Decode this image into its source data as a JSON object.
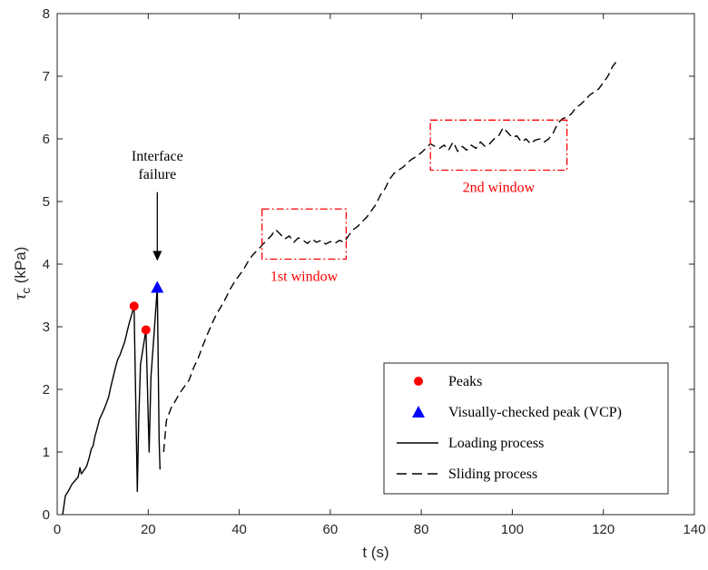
{
  "chart_data": {
    "type": "line",
    "xlabel": "t (s)",
    "ylabel": "τ",
    "ylabel_sub": "c",
    "ylabel_unit": " (kPa)",
    "xlim": [
      0,
      140
    ],
    "ylim": [
      0,
      8
    ],
    "xticks": [
      0,
      20,
      40,
      60,
      80,
      100,
      120,
      140
    ],
    "yticks": [
      0,
      1,
      2,
      3,
      4,
      5,
      6,
      7,
      8
    ],
    "grid": false,
    "legend_position": "bottom-right",
    "legend": [
      {
        "label": "Peaks",
        "marker": "circle",
        "color": "#ff0000"
      },
      {
        "label": "Visually-checked peak (VCP)",
        "marker": "triangle",
        "color": "#0000ff"
      },
      {
        "label": "Loading process",
        "line": "solid",
        "color": "#000000"
      },
      {
        "label": "Sliding process",
        "line": "dashed",
        "color": "#000000"
      }
    ],
    "series": [
      {
        "style": "solid",
        "color": "#000000",
        "x": [
          1.2,
          1.8,
          2.5,
          3.2,
          4.0,
          4.6,
          5.0,
          5.3,
          5.6,
          6.0,
          6.5,
          7.0,
          7.5,
          7.9,
          8.3,
          8.8,
          9.3,
          9.8,
          10.3,
          10.8,
          11.3,
          11.8,
          12.3,
          12.8,
          13.3,
          13.8,
          14.3,
          14.8,
          15.3,
          15.8,
          16.4,
          16.9,
          17.6,
          17.9,
          18.3,
          19.5,
          20.2,
          20.6,
          21.3,
          22.0,
          22.4,
          22.6
        ],
        "y": [
          0.0,
          0.3,
          0.38,
          0.48,
          0.55,
          0.6,
          0.75,
          0.65,
          0.68,
          0.72,
          0.78,
          0.9,
          1.05,
          1.1,
          1.25,
          1.38,
          1.52,
          1.6,
          1.68,
          1.78,
          1.88,
          2.05,
          2.2,
          2.35,
          2.48,
          2.55,
          2.65,
          2.75,
          2.9,
          3.05,
          3.2,
          3.33,
          0.37,
          1.5,
          2.4,
          2.95,
          1.0,
          2.2,
          2.9,
          3.63,
          1.2,
          0.72
        ]
      },
      {
        "style": "dashed",
        "color": "#000000",
        "x": [
          23.4,
          24,
          25,
          26,
          27,
          28,
          29,
          30,
          31,
          32,
          33,
          34,
          35,
          36,
          37,
          38,
          39,
          40,
          41,
          42,
          43,
          44,
          45,
          46,
          47,
          48,
          49,
          50,
          51,
          52,
          53,
          54,
          55,
          56,
          57,
          58,
          59,
          60,
          61,
          62,
          63,
          64,
          65,
          66,
          67,
          68,
          69,
          70,
          71,
          72,
          73,
          74,
          75,
          76,
          77,
          78,
          79,
          80,
          81,
          82,
          83,
          84,
          85,
          86,
          87,
          88,
          89,
          90,
          91,
          92,
          93,
          94,
          95,
          96,
          97,
          98,
          99,
          100,
          101,
          102,
          103,
          104,
          105,
          106,
          107,
          108,
          109,
          110,
          111,
          112,
          113,
          114,
          115,
          116,
          117,
          118,
          119,
          120,
          121,
          122,
          123
        ],
        "y": [
          1.0,
          1.5,
          1.7,
          1.82,
          1.95,
          2.05,
          2.15,
          2.35,
          2.5,
          2.7,
          2.88,
          3.05,
          3.2,
          3.32,
          3.45,
          3.6,
          3.72,
          3.82,
          3.92,
          4.05,
          4.15,
          4.22,
          4.3,
          4.38,
          4.45,
          4.55,
          4.48,
          4.4,
          4.45,
          4.35,
          4.42,
          4.38,
          4.33,
          4.4,
          4.35,
          4.38,
          4.32,
          4.36,
          4.33,
          4.38,
          4.35,
          4.45,
          4.55,
          4.6,
          4.68,
          4.75,
          4.85,
          4.95,
          5.1,
          5.2,
          5.35,
          5.45,
          5.5,
          5.55,
          5.62,
          5.68,
          5.72,
          5.78,
          5.85,
          5.92,
          5.88,
          5.85,
          5.9,
          5.82,
          5.95,
          5.8,
          5.88,
          5.82,
          5.9,
          5.85,
          5.95,
          5.88,
          5.92,
          6.0,
          6.05,
          6.18,
          6.1,
          6.02,
          6.05,
          5.95,
          6.0,
          5.92,
          5.98,
          6.0,
          5.95,
          6.0,
          6.1,
          6.25,
          6.32,
          6.35,
          6.4,
          6.5,
          6.55,
          6.62,
          6.7,
          6.75,
          6.8,
          6.9,
          7.0,
          7.15,
          7.25
        ]
      }
    ],
    "peaks": [
      {
        "x": 16.9,
        "y": 3.33
      },
      {
        "x": 19.5,
        "y": 2.95
      }
    ],
    "vcp": {
      "x": 22.0,
      "y": 3.63
    },
    "windows": [
      {
        "label": "1st window",
        "x0": 45,
        "x1": 63.5,
        "y0": 4.08,
        "y1": 4.88
      },
      {
        "label": "2nd window",
        "x0": 82,
        "x1": 112,
        "y0": 5.5,
        "y1": 6.3
      }
    ],
    "annotation": {
      "lines": [
        "Interface",
        "failure"
      ],
      "arrow_x": 22.0,
      "arrow_y_top": 5.15,
      "arrow_y_bottom": 4.05
    }
  }
}
